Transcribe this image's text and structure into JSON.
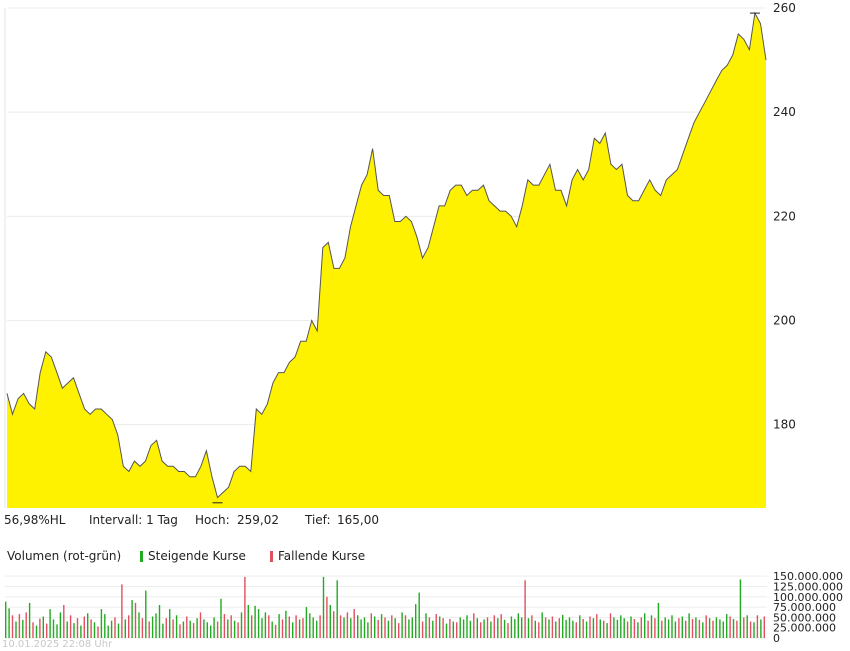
{
  "chart_data": [
    {
      "type": "area",
      "fill_color": "#fff200",
      "line_color": "#555555",
      "ylim": [
        164,
        260
      ],
      "y_ticks": [
        180,
        200,
        220,
        240,
        260
      ],
      "grid": true,
      "values": [
        186,
        182,
        185,
        186,
        184,
        183,
        190,
        194,
        193,
        190,
        187,
        188,
        189,
        186,
        183,
        182,
        183,
        183,
        182,
        181,
        178,
        172,
        171,
        173,
        172,
        173,
        176,
        177,
        173,
        172,
        172,
        171,
        171,
        170,
        170,
        172,
        175,
        170,
        166,
        167,
        168,
        171,
        172,
        172,
        171,
        183,
        182,
        184,
        188,
        190,
        190,
        192,
        193,
        196,
        196,
        200,
        198,
        214,
        215,
        210,
        210,
        212,
        218,
        222,
        226,
        228,
        233,
        225,
        224,
        224,
        219,
        219,
        220,
        219,
        216,
        212,
        214,
        218,
        222,
        222,
        225,
        226,
        226,
        224,
        225,
        225,
        226,
        223,
        222,
        221,
        221,
        220,
        218,
        222,
        227,
        226,
        226,
        228,
        230,
        225,
        225,
        222,
        227,
        229,
        227,
        229,
        235,
        234,
        236,
        230,
        229,
        230,
        224,
        223,
        223,
        225,
        227,
        225,
        224,
        227,
        228,
        229,
        232,
        235,
        238,
        240,
        242,
        244,
        246,
        248,
        249,
        251,
        255,
        254,
        252,
        259,
        257,
        250
      ],
      "high": 259.02,
      "low": 165.0
    },
    {
      "type": "bar",
      "ylim": [
        0,
        160000000
      ],
      "y_ticks": [
        "150.000.000",
        "125.000.000",
        "100.000.000",
        "75.000.000",
        "50.000.000",
        "25.000.000",
        "0"
      ],
      "up_color": "#22aa22",
      "down_color": "#e05060",
      "values": [
        88,
        72,
        55,
        40,
        58,
        44,
        62,
        85,
        38,
        30,
        47,
        52,
        35,
        70,
        45,
        33,
        62,
        80,
        40,
        55,
        36,
        48,
        30,
        52,
        60,
        45,
        38,
        28,
        70,
        58,
        30,
        42,
        50,
        35,
        130,
        45,
        55,
        92,
        85,
        62,
        48,
        115,
        40,
        52,
        60,
        80,
        35,
        48,
        70,
        45,
        55,
        33,
        40,
        52,
        42,
        36,
        48,
        62,
        45,
        38,
        30,
        50,
        40,
        95,
        58,
        45,
        55,
        42,
        38,
        62,
        150,
        80,
        55,
        78,
        70,
        48,
        62,
        55,
        40,
        32,
        58,
        45,
        66,
        52,
        38,
        55,
        45,
        48,
        75,
        60,
        50,
        42,
        55,
        150,
        100,
        80,
        65,
        140,
        55,
        50,
        62,
        48,
        70,
        55,
        45,
        50,
        38,
        60,
        52,
        44,
        58,
        50,
        42,
        55,
        48,
        36,
        62,
        55,
        45,
        50,
        82,
        110,
        40,
        60,
        50,
        42,
        58,
        52,
        48,
        35,
        46,
        40,
        38,
        50,
        45,
        55,
        42,
        60,
        48,
        38,
        45,
        50,
        40,
        55,
        48,
        58,
        44,
        36,
        52,
        46,
        60,
        50,
        140,
        48,
        55,
        42,
        38,
        62,
        50,
        45,
        52,
        40,
        48,
        56,
        44,
        50,
        42,
        38,
        55,
        46,
        40,
        52,
        48,
        58,
        45,
        42,
        36,
        60,
        50,
        44,
        55,
        48,
        40,
        52,
        46,
        38,
        50,
        60,
        42,
        55,
        48,
        85,
        42,
        50,
        45,
        55,
        40,
        48,
        52,
        42,
        60,
        46,
        50,
        44,
        38,
        55,
        48,
        42,
        50,
        45,
        40,
        58,
        52,
        46,
        42,
        142,
        50,
        55,
        40,
        38,
        55,
        45,
        52
      ]
    }
  ],
  "info": {
    "hl_label": "56,98%HL",
    "interval_label": "Intervall: 1 Tag",
    "high_label": "Hoch:",
    "high_value": "259,02",
    "low_label": "Tief:",
    "low_value": "165,00"
  },
  "legend": {
    "volume_label": "Volumen (rot-grün)",
    "up_label": "Steigende Kurse",
    "down_label": "Fallende Kurse"
  },
  "footer": "10.01.2025 22:08 Uhr"
}
